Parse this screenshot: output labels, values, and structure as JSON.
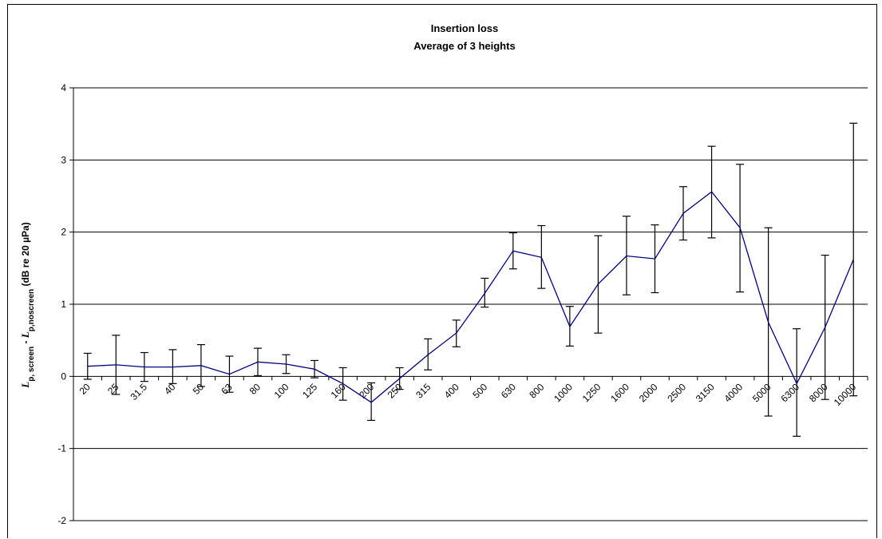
{
  "chart_data": {
    "type": "line",
    "title": "Insertion loss",
    "subtitle": "Average of 3 heights",
    "ylabel": "Lp, screen - Lp,noscreen  (dB re 20 µPa)",
    "ylabel_parts": [
      "L",
      "p, screen",
      " - ",
      "L",
      "p,noscreen",
      "  (dB re 20 µPa)"
    ],
    "xlabel": "",
    "ylim": [
      -2,
      4
    ],
    "yticks": [
      -2,
      -1,
      0,
      1,
      2,
      3,
      4
    ],
    "grid": "horizontal",
    "line_color": "#000080",
    "categories": [
      "20",
      "25",
      "31.5",
      "40",
      "50",
      "63",
      "80",
      "100",
      "125",
      "160",
      "200",
      "250",
      "315",
      "400",
      "500",
      "630",
      "800",
      "1000",
      "1250",
      "1600",
      "2000",
      "2500",
      "3150",
      "4000",
      "5000",
      "6300",
      "8000",
      "10000"
    ],
    "series": [
      {
        "values": [
          0.14,
          0.16,
          0.13,
          0.13,
          0.15,
          0.03,
          0.2,
          0.17,
          0.1,
          -0.1,
          -0.36,
          -0.03,
          0.3,
          0.6,
          1.15,
          1.74,
          1.65,
          0.69,
          1.28,
          1.67,
          1.63,
          2.26,
          2.56,
          2.06,
          0.75,
          -0.1,
          0.68,
          1.62
        ],
        "err_high": [
          0.32,
          0.57,
          0.33,
          0.37,
          0.44,
          0.28,
          0.39,
          0.3,
          0.22,
          0.12,
          -0.09,
          0.12,
          0.52,
          0.78,
          1.36,
          1.99,
          2.09,
          0.97,
          1.95,
          2.22,
          2.1,
          2.63,
          3.19,
          2.94,
          2.06,
          0.66,
          1.68,
          3.51
        ],
        "err_low": [
          -0.04,
          -0.25,
          -0.07,
          -0.1,
          -0.14,
          -0.22,
          0.01,
          0.04,
          -0.02,
          -0.33,
          -0.61,
          -0.18,
          0.09,
          0.41,
          0.96,
          1.49,
          1.22,
          0.42,
          0.6,
          1.13,
          1.16,
          1.89,
          1.92,
          1.17,
          -0.55,
          -0.83,
          -0.32,
          -0.27
        ]
      }
    ]
  }
}
